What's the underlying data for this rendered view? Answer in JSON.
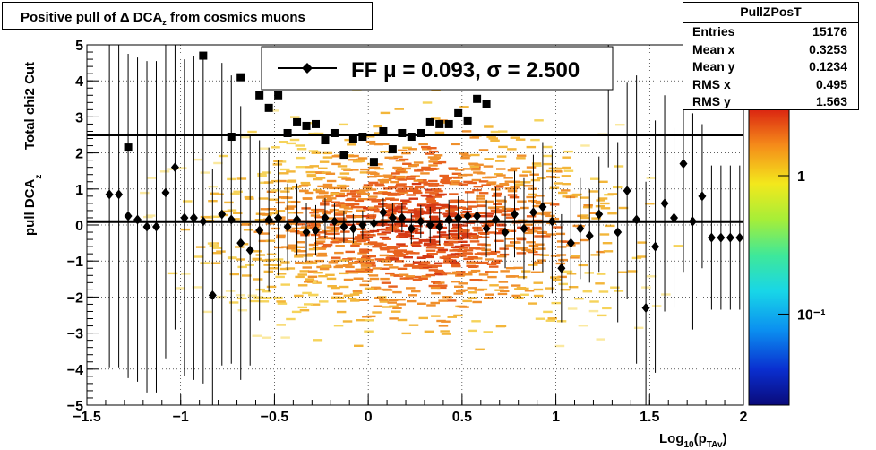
{
  "title": {
    "main": "Positive pull of Δ DCA",
    "sub": "z",
    "tail": " from cosmics muons"
  },
  "stats": {
    "name": "PullZPosT",
    "rows": [
      {
        "key": "Entries",
        "value": "15176"
      },
      {
        "key": "Mean x",
        "value": "0.3253"
      },
      {
        "key": "Mean y",
        "value": "0.1234"
      },
      {
        "key": "RMS x",
        "value": "0.495"
      },
      {
        "key": "RMS y",
        "value": "1.563"
      }
    ]
  },
  "legend": {
    "label": "FF μ =  0.093, σ =   2.500"
  },
  "colorbar": {
    "labels": [
      {
        "text": "1",
        "value": 1
      },
      {
        "text": "10⁻¹",
        "value": 0.1
      }
    ]
  },
  "chart_data": {
    "type": "scatter",
    "xlabel": "Log10(pTAv)",
    "xlabel_parts": {
      "base": "Log",
      "sub1": "10",
      "mid": "(p",
      "sub2": "TAv",
      "end": ")"
    },
    "ylabel_top": "Total chi2 Cut",
    "ylabel_main": "pull DCA",
    "ylabel_sub": "z",
    "xlim": [
      -1.5,
      2
    ],
    "ylim": [
      -5,
      5
    ],
    "xticks": [
      {
        "v": -1.5,
        "t": "−1.5"
      },
      {
        "v": -1,
        "t": "−1"
      },
      {
        "v": -0.5,
        "t": "−0.5"
      },
      {
        "v": 0,
        "t": "0"
      },
      {
        "v": 0.5,
        "t": "0.5"
      },
      {
        "v": 1,
        "t": "1"
      },
      {
        "v": 1.5,
        "t": "1.5"
      },
      {
        "v": 2,
        "t": "2"
      }
    ],
    "yticks": [
      {
        "v": 5,
        "t": "5"
      },
      {
        "v": 4,
        "t": "4"
      },
      {
        "v": 3,
        "t": "3"
      },
      {
        "v": 2,
        "t": "2"
      },
      {
        "v": 1,
        "t": "1"
      },
      {
        "v": 0,
        "t": "0"
      },
      {
        "v": -1,
        "t": "−1"
      },
      {
        "v": -2,
        "t": "−2"
      },
      {
        "v": -3,
        "t": "−3"
      },
      {
        "v": -4,
        "t": "−4"
      },
      {
        "v": -5,
        "t": "−5"
      }
    ],
    "grid": true,
    "legend_position": "top-center",
    "hlines": [
      {
        "name": "sigma",
        "y": 2.5
      },
      {
        "name": "mu",
        "y": 0.093
      }
    ],
    "series": [
      {
        "name": "mean",
        "marker": "diamond",
        "color": "#000000",
        "x": [
          -1.38,
          -1.33,
          -1.28,
          -1.23,
          -1.18,
          -1.13,
          -1.08,
          -1.03,
          -0.98,
          -0.93,
          -0.88,
          -0.83,
          -0.78,
          -0.73,
          -0.68,
          -0.63,
          -0.58,
          -0.53,
          -0.48,
          -0.43,
          -0.38,
          -0.33,
          -0.28,
          -0.23,
          -0.18,
          -0.13,
          -0.08,
          -0.03,
          0.03,
          0.08,
          0.13,
          0.18,
          0.23,
          0.28,
          0.33,
          0.38,
          0.43,
          0.48,
          0.53,
          0.58,
          0.63,
          0.68,
          0.73,
          0.78,
          0.83,
          0.88,
          0.93,
          0.98,
          1.03,
          1.08,
          1.13,
          1.18,
          1.23,
          1.28,
          1.33,
          1.38,
          1.43,
          1.48,
          1.53,
          1.58,
          1.63,
          1.68,
          1.73,
          1.78,
          1.83,
          1.88,
          1.93,
          1.98
        ],
        "y": [
          0.85,
          0.85,
          0.25,
          0.15,
          -0.05,
          -0.05,
          0.9,
          1.6,
          0.2,
          0.2,
          0.1,
          -1.95,
          0.3,
          0.15,
          -0.5,
          -0.7,
          -0.15,
          0.15,
          0.2,
          -0.05,
          0.15,
          -0.2,
          -0.15,
          0.2,
          0.1,
          -0.05,
          -0.1,
          0.0,
          0.05,
          0.35,
          0.2,
          0.2,
          -0.1,
          0.1,
          0.0,
          -0.05,
          0.15,
          0.2,
          0.25,
          0.25,
          -0.1,
          0.15,
          -0.2,
          0.3,
          -0.1,
          0.35,
          0.5,
          0.1,
          -1.2,
          -0.5,
          -0.1,
          -0.3,
          0.3,
          4.6,
          -0.2,
          0.95,
          0.15,
          -2.3,
          -0.6,
          0.6,
          0.2,
          1.7,
          0.1,
          0.8,
          -0.35,
          -0.35,
          -0.35,
          -0.35
        ],
        "err": [
          4.8,
          4.8,
          4.5,
          4.5,
          4.6,
          4.6,
          4.6,
          4.5,
          4.4,
          4.5,
          4.5,
          3.5,
          4.2,
          4.0,
          3.8,
          3.2,
          2.5,
          2.0,
          1.6,
          1.2,
          1.0,
          0.8,
          0.7,
          0.55,
          0.5,
          0.45,
          0.4,
          0.4,
          0.4,
          0.4,
          0.4,
          0.4,
          0.42,
          0.45,
          0.5,
          0.5,
          0.55,
          0.6,
          0.65,
          0.7,
          0.8,
          0.9,
          1.0,
          1.2,
          1.4,
          1.6,
          1.8,
          2.0,
          1.5,
          1.3,
          1.4,
          1.3,
          1.6,
          3.0,
          2.5,
          3.0,
          4.0,
          3.5,
          3.5,
          3.0,
          2.5,
          3.0,
          3.0,
          2.0,
          2.0,
          2.0,
          2.0,
          2.0
        ]
      },
      {
        "name": "rms",
        "marker": "square",
        "color": "#000000",
        "x": [
          -1.28,
          -0.88,
          -0.73,
          -0.68,
          -0.58,
          -0.53,
          -0.48,
          -0.43,
          -0.38,
          -0.33,
          -0.28,
          -0.23,
          -0.18,
          -0.13,
          -0.08,
          -0.03,
          0.03,
          0.08,
          0.13,
          0.18,
          0.23,
          0.28,
          0.33,
          0.38,
          0.43,
          0.48,
          0.53,
          0.58,
          0.63
        ],
        "y": [
          2.15,
          4.7,
          2.45,
          4.1,
          3.6,
          3.25,
          3.6,
          2.55,
          2.85,
          2.75,
          2.8,
          2.35,
          2.55,
          1.95,
          2.4,
          2.45,
          1.75,
          2.6,
          2.1,
          2.55,
          2.45,
          2.55,
          2.85,
          2.8,
          2.8,
          3.1,
          2.9,
          3.5,
          3.35
        ],
        "err": [
          0.1,
          0.1,
          0.1,
          0.1,
          0.08,
          0.08,
          0.08,
          0.08,
          0.08,
          0.08,
          0.08,
          0.08,
          0.08,
          0.08,
          0.08,
          0.08,
          0.08,
          0.08,
          0.08,
          0.08,
          0.08,
          0.08,
          0.08,
          0.08,
          0.08,
          0.08,
          0.08,
          0.08,
          0.08
        ]
      }
    ]
  }
}
